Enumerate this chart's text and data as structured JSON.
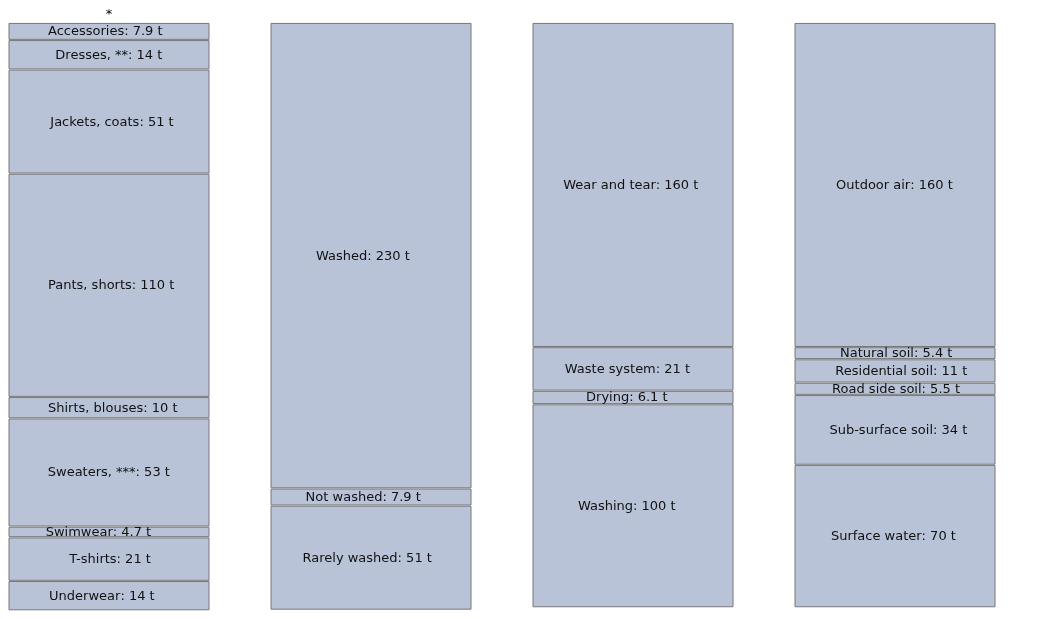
{
  "chart_data": [
    {
      "type": "other",
      "annotations": [
        "*"
      ],
      "categories": [
        "Accessories",
        "Dresses, **",
        "Jackets, coats",
        "Pants, shorts",
        "Shirts, blouses",
        "Sweaters, ***",
        "Swimwear",
        "T-shirts",
        "Underwear"
      ],
      "values": [
        7.9,
        14,
        51,
        110,
        10,
        53,
        4.7,
        21,
        14
      ],
      "value_labels": [
        ": 7.9 t",
        ": 14 t",
        ": 51 t",
        ": 110 t",
        ": 10 t",
        ": 53 t",
        ": 4.7 t",
        ": 21 t",
        ": 14 t"
      ],
      "colors": [
        "#b9c3d8",
        "#b9c3d8",
        "#b9c3d8",
        "#b9c3d8",
        "#b9c3d8",
        "#b9c3d8",
        "#b9c3d8",
        "#b9c3d8",
        "#b9c3d8"
      ]
    },
    {
      "type": "other",
      "categories": [
        "Washed",
        "Not washed",
        "Rarely washed"
      ],
      "values": [
        230,
        7.9,
        51
      ],
      "value_labels": [
        ": 230 t",
        ": 7.9 t",
        ": 51 t"
      ],
      "colors": [
        "#b9c3d8",
        "#b9c3d8",
        "#b9c3d8"
      ]
    },
    {
      "type": "other",
      "categories": [
        "Wear and tear",
        "Waste system",
        "Drying",
        "Washing"
      ],
      "values": [
        160,
        21,
        6.1,
        100
      ],
      "value_labels": [
        ": 160 t",
        ": 21 t",
        ": 6.1 t",
        ": 100 t"
      ],
      "colors": [
        "#b9c3d8",
        "#b9c3d8",
        "#b9c3d8",
        "#b9c3d8"
      ]
    },
    {
      "type": "other",
      "categories": [
        "Outdoor air",
        "Natural soil",
        "Residential soil",
        "Road side soil",
        "Sub-surface soil",
        "Surface water"
      ],
      "values": [
        160,
        5.4,
        11,
        5.5,
        34,
        70
      ],
      "value_labels": [
        ": 160 t",
        ": 5.4 t",
        ": 11 t",
        ": 5.5 t",
        ": 34 t",
        ": 70 t"
      ],
      "colors": [
        "#b9c3d8",
        "#b9c3d8",
        "#b9c3d8",
        "#b9c3d8",
        "#b9c3d8",
        "#b9c3d8"
      ]
    }
  ]
}
